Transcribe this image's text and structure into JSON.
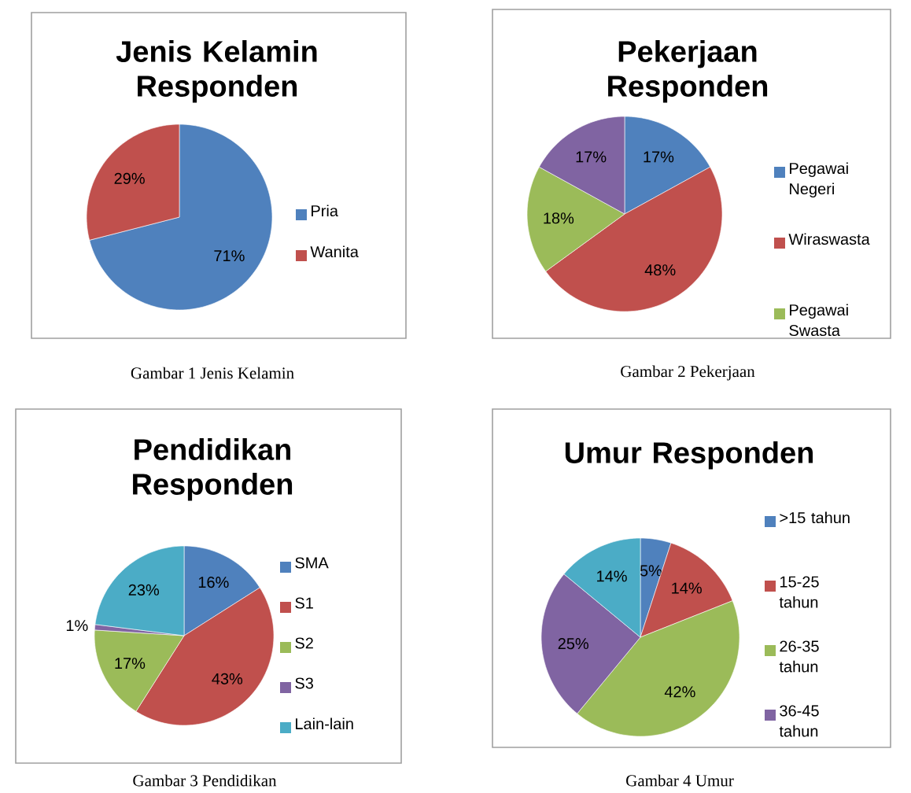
{
  "chart_data": [
    {
      "type": "pie",
      "title": "Jenis Kelamin Responden",
      "categories": [
        "Pria",
        "Wanita"
      ],
      "values": [
        71,
        29
      ],
      "colors": [
        "#4f81bd",
        "#c0504d"
      ],
      "value_labels": [
        "71%",
        "29%"
      ],
      "legend": "right",
      "annotations": [
        "Gambar 1 Jenis Kelamin"
      ]
    },
    {
      "type": "pie",
      "title": "Pekerjaan Responden",
      "categories": [
        "Pegawai Negeri",
        "Wiraswasta",
        "Pegawai Swasta",
        null
      ],
      "values": [
        17,
        48,
        18,
        17
      ],
      "colors": [
        "#4f81bd",
        "#c0504d",
        "#9bbb59",
        "#8064a2"
      ],
      "value_labels": [
        "17%",
        "48%",
        "18%",
        "17%"
      ],
      "legend": "right",
      "annotations": [
        "Gambar 2 Pekerjaan"
      ]
    },
    {
      "type": "pie",
      "title": "Pendidikan Responden",
      "categories": [
        "SMA",
        "S1",
        "S2",
        "S3",
        "Lain-lain"
      ],
      "values": [
        16,
        43,
        17,
        1,
        23
      ],
      "colors": [
        "#4f81bd",
        "#c0504d",
        "#9bbb59",
        "#8064a2",
        "#4bacc6"
      ],
      "value_labels": [
        "16%",
        "43%",
        "17%",
        "1%",
        "23%"
      ],
      "legend": "right",
      "annotations": [
        "Gambar 3 Pendidikan"
      ]
    },
    {
      "type": "pie",
      "title": "Umur Responden",
      "categories": [
        ">15 tahun",
        "15-25 tahun",
        "26-35 tahun",
        "36-45 tahun",
        null
      ],
      "values": [
        5,
        14,
        42,
        25,
        14
      ],
      "colors": [
        "#4f81bd",
        "#c0504d",
        "#9bbb59",
        "#8064a2",
        "#4bacc6"
      ],
      "value_labels": [
        "5%",
        "14%",
        "42%",
        "25%",
        "14%"
      ],
      "legend": "right",
      "annotations": [
        "Gambar 4 Umur"
      ]
    }
  ]
}
